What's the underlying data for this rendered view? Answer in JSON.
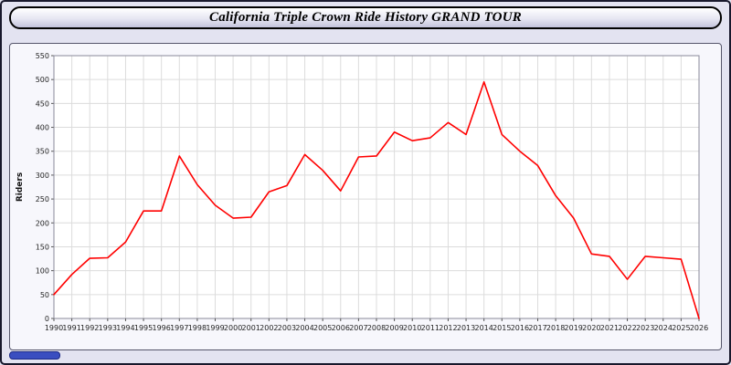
{
  "window": {
    "title": "California Triple Crown Ride History GRAND TOUR"
  },
  "colors": {
    "line": "#ff0000",
    "scrollbar_thumb": "#3a4ec0",
    "grid": "#dcdcdc",
    "plot_background": "#ffffff"
  },
  "chart_data": {
    "type": "line",
    "title": "California Triple Crown Ride History GRAND TOUR",
    "xlabel": "",
    "ylabel": "Riders",
    "ylim": [
      0,
      550
    ],
    "ytick_step": 50,
    "grid": true,
    "legend_position": "none",
    "x": [
      1990,
      1991,
      1992,
      1993,
      1994,
      1995,
      1996,
      1997,
      1998,
      1999,
      2000,
      2001,
      2002,
      2003,
      2004,
      2005,
      2006,
      2007,
      2008,
      2009,
      2010,
      2011,
      2012,
      2013,
      2014,
      2015,
      2016,
      2017,
      2018,
      2019,
      2020,
      2021,
      2022,
      2023,
      2024,
      2025,
      2026
    ],
    "series": [
      {
        "name": "Riders",
        "color": "#ff0000",
        "values": [
          50,
          92,
          126,
          127,
          160,
          225,
          225,
          340,
          280,
          237,
          210,
          212,
          265,
          278,
          343,
          310,
          267,
          338,
          340,
          390,
          372,
          378,
          410,
          385,
          495,
          385,
          350,
          320,
          257,
          210,
          135,
          130,
          82,
          130,
          127,
          124,
          0
        ]
      }
    ]
  }
}
